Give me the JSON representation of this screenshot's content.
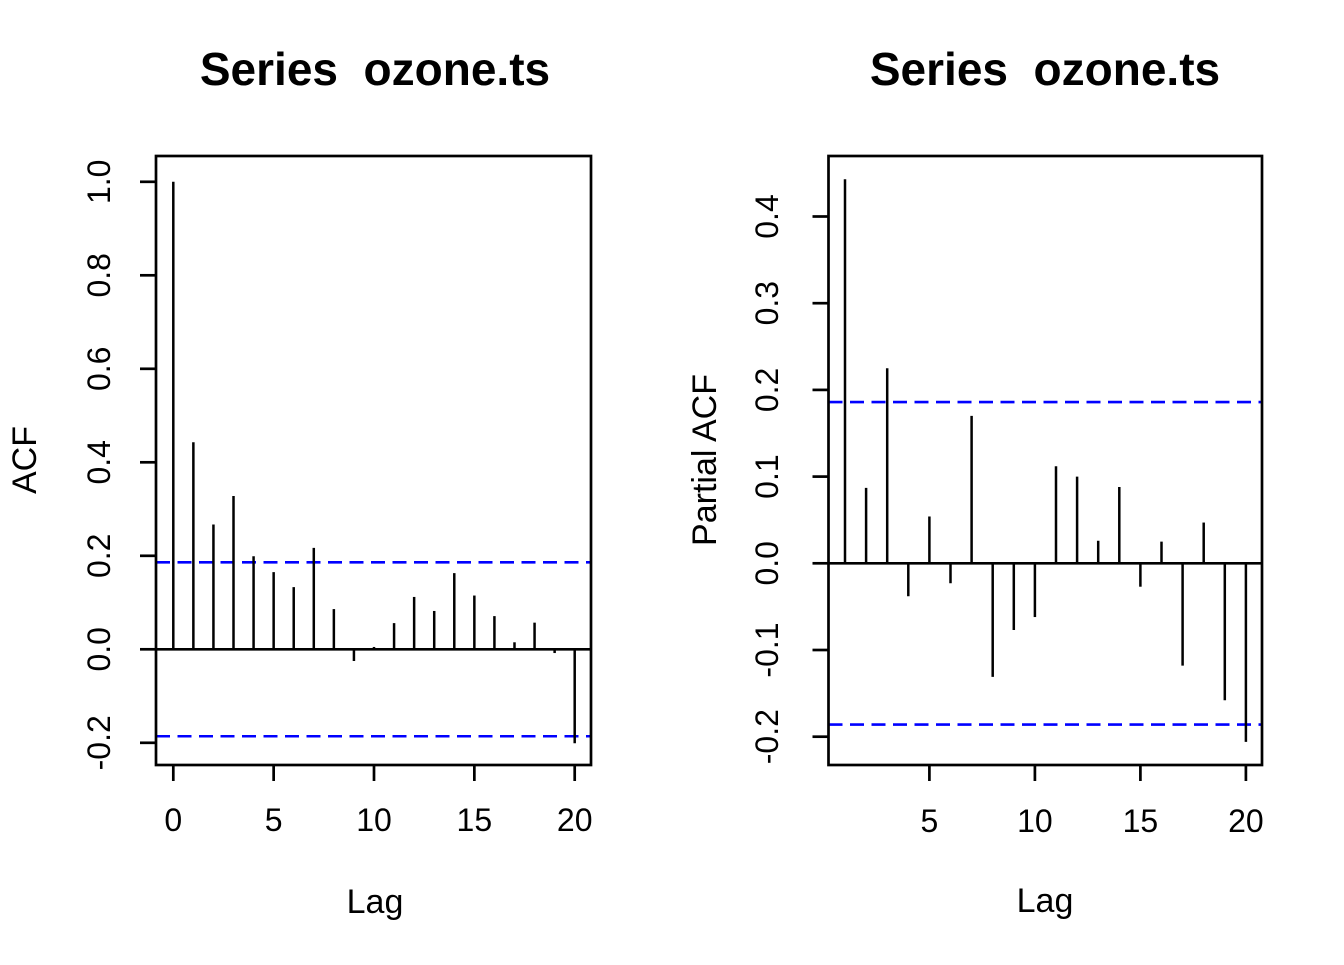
{
  "figure": {
    "series_name": "ozone.ts",
    "background_color": "#ffffff",
    "line_color": "#000000",
    "confidence_line_color": "#0000ff"
  },
  "chart_data": [
    {
      "type": "bar",
      "panel": "acf",
      "title": "Series  ozone.ts",
      "xlabel": "Lag",
      "ylabel": "ACF",
      "lags": [
        0,
        1,
        2,
        3,
        4,
        5,
        6,
        7,
        8,
        9,
        10,
        11,
        12,
        13,
        14,
        15,
        16,
        17,
        18,
        19,
        20
      ],
      "values": [
        1.0,
        0.443,
        0.267,
        0.328,
        0.199,
        0.165,
        0.133,
        0.217,
        0.086,
        -0.025,
        0.005,
        0.056,
        0.112,
        0.082,
        0.163,
        0.115,
        0.071,
        0.015,
        0.057,
        -0.008,
        -0.201
      ],
      "conf_bound": 0.186,
      "zero_line": 0,
      "xlim": [
        0,
        20
      ],
      "ylim": [
        -0.2,
        1.0
      ],
      "xtick_values": [
        0,
        5,
        10,
        15,
        20
      ],
      "xtick_labels": [
        "0",
        "5",
        "10",
        "15",
        "20"
      ],
      "ytick_values": [
        -0.2,
        0.0,
        0.2,
        0.4,
        0.6,
        0.8,
        1.0
      ],
      "ytick_labels": [
        "-0.2",
        "0.0",
        "0.2",
        "0.4",
        "0.6",
        "0.8",
        "1.0"
      ],
      "grid": false,
      "legend": null
    },
    {
      "type": "bar",
      "panel": "pacf",
      "title": "Series  ozone.ts",
      "xlabel": "Lag",
      "ylabel": "Partial ACF",
      "lags": [
        1,
        2,
        3,
        4,
        5,
        6,
        7,
        8,
        9,
        10,
        11,
        12,
        13,
        14,
        15,
        16,
        17,
        18,
        19,
        20
      ],
      "values": [
        0.443,
        0.087,
        0.225,
        -0.038,
        0.054,
        -0.023,
        0.17,
        -0.131,
        -0.077,
        -0.062,
        0.112,
        0.1,
        0.026,
        0.088,
        -0.027,
        0.025,
        -0.118,
        0.047,
        -0.158,
        -0.206
      ],
      "conf_bound": 0.186,
      "zero_line": 0,
      "xlim": [
        1,
        20
      ],
      "ylim": [
        -0.2,
        0.4
      ],
      "xtick_values": [
        5,
        10,
        15,
        20
      ],
      "xtick_labels": [
        "5",
        "10",
        "15",
        "20"
      ],
      "ytick_values": [
        -0.2,
        -0.1,
        0.0,
        0.1,
        0.2,
        0.3,
        0.4
      ],
      "ytick_labels": [
        "-0.2",
        "-0.1",
        "0.0",
        "0.1",
        "0.2",
        "0.3",
        "0.4"
      ],
      "grid": false,
      "legend": null
    }
  ]
}
